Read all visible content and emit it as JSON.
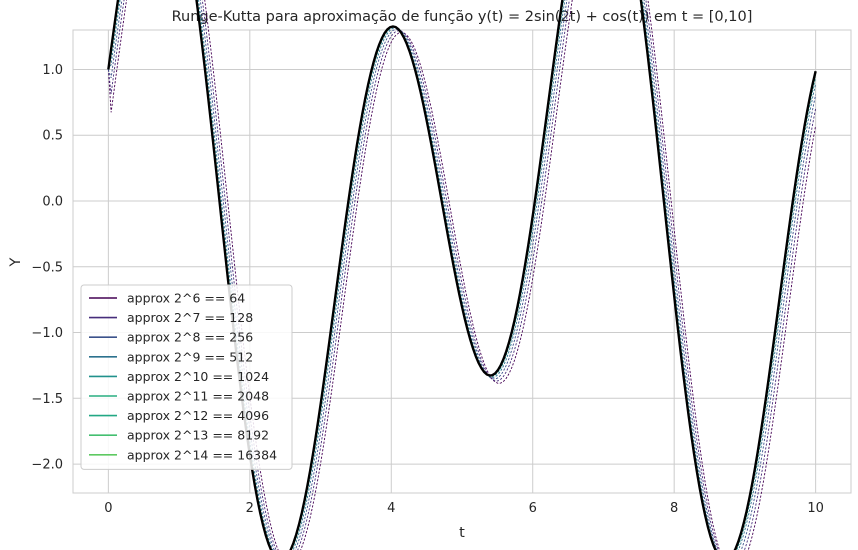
{
  "chart_data": {
    "type": "line",
    "title": "Runge-Kutta para aproximação de função y(t) = 2sin(2t) + cos(t)) em t = [0,10]",
    "xlabel": "t",
    "ylabel": "Y",
    "xlim": [
      -0.5,
      10.5
    ],
    "ylim": [
      -2.22,
      1.3
    ],
    "xticks": [
      0,
      2,
      4,
      6,
      8,
      10
    ],
    "xtick_labels": [
      "0",
      "2",
      "4",
      "6",
      "8",
      "10"
    ],
    "yticks": [
      1.0,
      0.5,
      0.0,
      -0.5,
      -1.0,
      -1.5,
      -2.0
    ],
    "ytick_labels": [
      "1.0",
      "0.5",
      "0.0",
      "−0.5",
      "−1.0",
      "−1.5",
      "−2.0"
    ],
    "grid": true,
    "legend_position": "lower-left",
    "exact_curve": {
      "color": "#000000",
      "expression": "y(t) = 2sin(2t) + cos(t)"
    },
    "series": [
      {
        "name": "approx 2^6 == 64",
        "color": "#440154",
        "lag": 0.12
      },
      {
        "name": "approx 2^7 == 128",
        "color": "#472d7b",
        "lag": 0.085
      },
      {
        "name": "approx 2^8 == 256",
        "color": "#3b528b",
        "lag": 0.055
      },
      {
        "name": "approx 2^9 == 512",
        "color": "#2c728e",
        "lag": 0.03
      },
      {
        "name": "approx 2^10 == 1024",
        "color": "#21918c",
        "lag": 0.015
      },
      {
        "name": "approx 2^11 == 2048",
        "color": "#28ae80",
        "lag": 0.007
      },
      {
        "name": "approx 2^12 == 4096",
        "color": "#22a884",
        "lag": 0.003
      },
      {
        "name": "approx 2^13 == 8192",
        "color": "#44bf70",
        "lag": 0.0015
      },
      {
        "name": "approx 2^14 == 16384",
        "color": "#5ec962",
        "lag": 0.0007
      }
    ]
  }
}
